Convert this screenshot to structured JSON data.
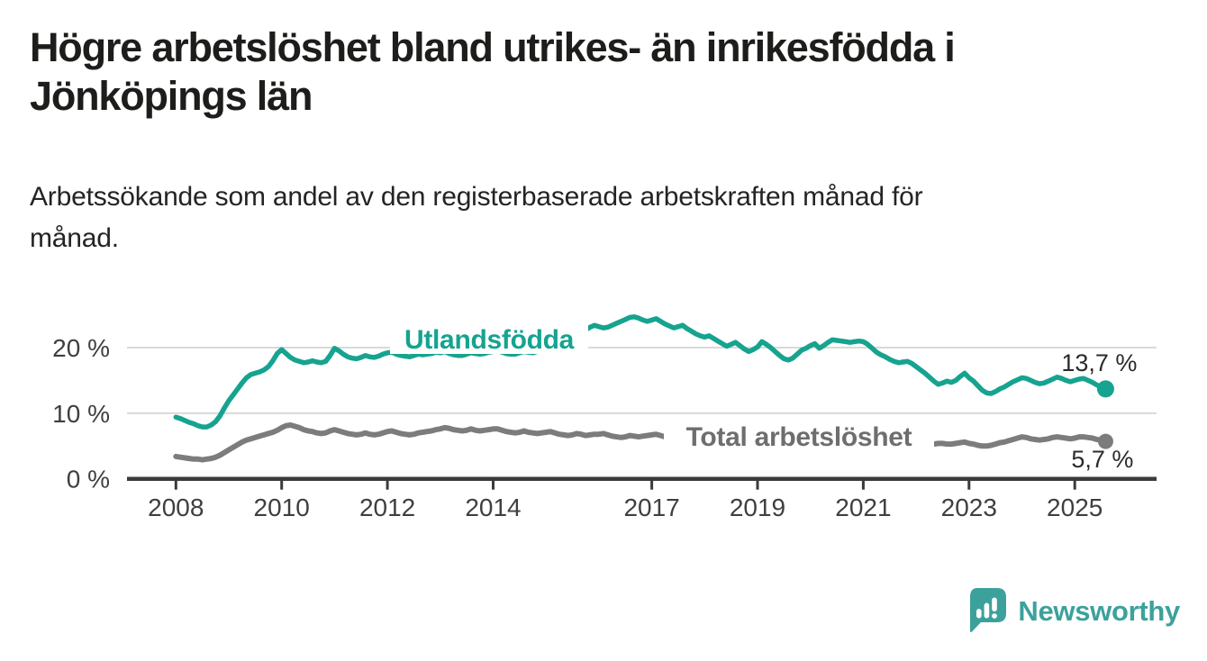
{
  "title": {
    "line1": "Högre arbetslöshet bland utrikes- än inrikesfödda i",
    "line2": "Jönköpings län"
  },
  "subtitle": {
    "line1": "Arbetssökande som andel av den registerbaserade arbetskraften månad för",
    "line2": "månad."
  },
  "branding": {
    "name": "Newsworthy",
    "logo_icon": "bar-chart-speech-bubble-icon",
    "color": "#3CA19B"
  },
  "colors": {
    "title_text": "#1d1d1b",
    "axis_text": "#3f3f3f",
    "axis_line": "#3b3b3b",
    "gridline": "#d9d9d9",
    "end_label_text": "#2b2b2b",
    "background": "#ffffff"
  },
  "chart_data": {
    "type": "line",
    "title": "Högre arbetslöshet bland utrikes- än inrikesfödda i Jönköpings län",
    "subtitle": "Arbetssökande som andel av den registerbaserade arbetskraften månad för månad.",
    "frequency": "monthly",
    "x_start": "2008-01",
    "x_end": "2025-08",
    "grid": "horizontal",
    "legend_position": "inline-labels",
    "x_ticks": [
      2008,
      2010,
      2012,
      2014,
      2017,
      2019,
      2021,
      2023,
      2025
    ],
    "y_ticks": [
      {
        "value": 0,
        "label": "0 %"
      },
      {
        "value": 10,
        "label": "10 %"
      },
      {
        "value": 20,
        "label": "20 %"
      }
    ],
    "ylim": [
      0,
      27
    ],
    "unit": "%",
    "series": [
      {
        "name": "Utlandsfödda",
        "color": "#16A38F",
        "end_value": 13.7,
        "end_label": "13,7 %",
        "values": [
          9.4,
          9.2,
          8.9,
          8.6,
          8.4,
          8.1,
          7.9,
          7.9,
          8.2,
          8.7,
          9.6,
          10.8,
          11.9,
          12.8,
          13.7,
          14.6,
          15.4,
          15.9,
          16.1,
          16.3,
          16.6,
          17.1,
          18.0,
          19.1,
          19.7,
          19.1,
          18.5,
          18.1,
          17.9,
          17.7,
          17.8,
          18.0,
          17.8,
          17.7,
          17.9,
          18.8,
          19.9,
          19.5,
          19.0,
          18.6,
          18.4,
          18.3,
          18.5,
          18.8,
          18.6,
          18.5,
          18.7,
          19.0,
          19.2,
          19.3,
          19.0,
          18.8,
          18.7,
          18.6,
          18.8,
          19.0,
          18.9,
          19.0,
          19.1,
          19.3,
          19.2,
          19.4,
          19.1,
          18.9,
          18.8,
          18.8,
          19.0,
          19.2,
          19.1,
          19.0,
          19.1,
          19.3,
          19.4,
          19.5,
          19.3,
          19.1,
          19.0,
          19.0,
          19.2,
          19.4,
          19.3,
          19.2,
          19.4,
          19.6,
          19.9,
          20.2,
          20.4,
          20.7,
          21.0,
          21.4,
          21.8,
          22.2,
          22.5,
          22.7,
          23.1,
          23.4,
          23.2,
          23.0,
          23.1,
          23.4,
          23.7,
          24.0,
          24.3,
          24.6,
          24.7,
          24.5,
          24.2,
          24.0,
          24.2,
          24.4,
          24.0,
          23.6,
          23.3,
          23.0,
          23.2,
          23.4,
          22.9,
          22.5,
          22.1,
          21.8,
          21.6,
          21.8,
          21.4,
          21.0,
          20.6,
          20.2,
          20.5,
          20.8,
          20.3,
          19.8,
          19.4,
          19.7,
          20.1,
          20.9,
          20.5,
          20.0,
          19.4,
          18.8,
          18.3,
          18.1,
          18.4,
          19.0,
          19.6,
          19.9,
          20.3,
          20.6,
          19.9,
          20.3,
          20.8,
          21.2,
          21.1,
          21.0,
          20.9,
          20.8,
          20.9,
          21.0,
          20.9,
          20.5,
          19.9,
          19.3,
          18.9,
          18.6,
          18.2,
          17.9,
          17.7,
          17.8,
          17.9,
          17.6,
          17.1,
          16.6,
          16.1,
          15.5,
          14.9,
          14.4,
          14.6,
          14.9,
          14.7,
          15.0,
          15.6,
          16.1,
          15.4,
          14.9,
          14.2,
          13.5,
          13.1,
          13.0,
          13.3,
          13.7,
          14.0,
          14.4,
          14.8,
          15.1,
          15.4,
          15.3,
          15.0,
          14.7,
          14.5,
          14.6,
          14.9,
          15.2,
          15.5,
          15.3,
          15.0,
          14.8,
          15.0,
          15.2,
          15.3,
          15.0,
          14.7,
          14.3,
          14.0,
          13.7
        ]
      },
      {
        "name": "Total arbetslöshet",
        "color": "#7C7C7C",
        "end_value": 5.7,
        "end_label": "5,7 %",
        "values": [
          3.4,
          3.3,
          3.2,
          3.1,
          3.0,
          3.0,
          2.9,
          3.0,
          3.1,
          3.3,
          3.6,
          4.0,
          4.4,
          4.8,
          5.2,
          5.6,
          5.9,
          6.1,
          6.3,
          6.5,
          6.7,
          6.9,
          7.1,
          7.4,
          7.8,
          8.1,
          8.2,
          8.0,
          7.8,
          7.5,
          7.3,
          7.2,
          7.0,
          6.9,
          7.0,
          7.3,
          7.5,
          7.3,
          7.1,
          6.9,
          6.8,
          6.7,
          6.8,
          7.0,
          6.8,
          6.7,
          6.8,
          7.0,
          7.2,
          7.3,
          7.1,
          6.9,
          6.8,
          6.7,
          6.8,
          7.0,
          7.1,
          7.2,
          7.3,
          7.5,
          7.6,
          7.8,
          7.7,
          7.5,
          7.4,
          7.3,
          7.4,
          7.6,
          7.4,
          7.3,
          7.4,
          7.5,
          7.6,
          7.6,
          7.4,
          7.2,
          7.1,
          7.0,
          7.1,
          7.3,
          7.1,
          7.0,
          6.9,
          7.0,
          7.1,
          7.2,
          7.0,
          6.8,
          6.7,
          6.6,
          6.7,
          6.9,
          6.8,
          6.6,
          6.7,
          6.8,
          6.8,
          6.9,
          6.7,
          6.5,
          6.4,
          6.3,
          6.4,
          6.6,
          6.5,
          6.4,
          6.5,
          6.6,
          6.7,
          6.8,
          6.6,
          6.4,
          6.3,
          6.2,
          6.3,
          6.5,
          6.4,
          6.3,
          6.2,
          6.3,
          6.5,
          6.6,
          6.4,
          6.2,
          6.1,
          6.0,
          6.1,
          6.3,
          6.1,
          6.0,
          5.9,
          6.0,
          6.2,
          6.3,
          6.1,
          6.0,
          5.9,
          5.8,
          5.9,
          6.1,
          6.2,
          6.3,
          6.4,
          6.5,
          6.7,
          6.9,
          7.2,
          7.6,
          7.9,
          8.0,
          7.9,
          7.8,
          7.6,
          7.4,
          7.2,
          7.1,
          7.0,
          6.9,
          6.7,
          6.5,
          6.3,
          6.1,
          6.0,
          5.9,
          5.8,
          5.7,
          5.6,
          5.6,
          5.5,
          5.4,
          5.3,
          5.3,
          5.3,
          5.4,
          5.4,
          5.3,
          5.3,
          5.4,
          5.5,
          5.6,
          5.4,
          5.3,
          5.1,
          5.0,
          5.0,
          5.1,
          5.3,
          5.5,
          5.6,
          5.8,
          6.0,
          6.2,
          6.4,
          6.3,
          6.1,
          6.0,
          5.9,
          6.0,
          6.1,
          6.3,
          6.4,
          6.3,
          6.2,
          6.1,
          6.2,
          6.4,
          6.4,
          6.3,
          6.2,
          6.0,
          5.9,
          5.7
        ]
      }
    ]
  }
}
